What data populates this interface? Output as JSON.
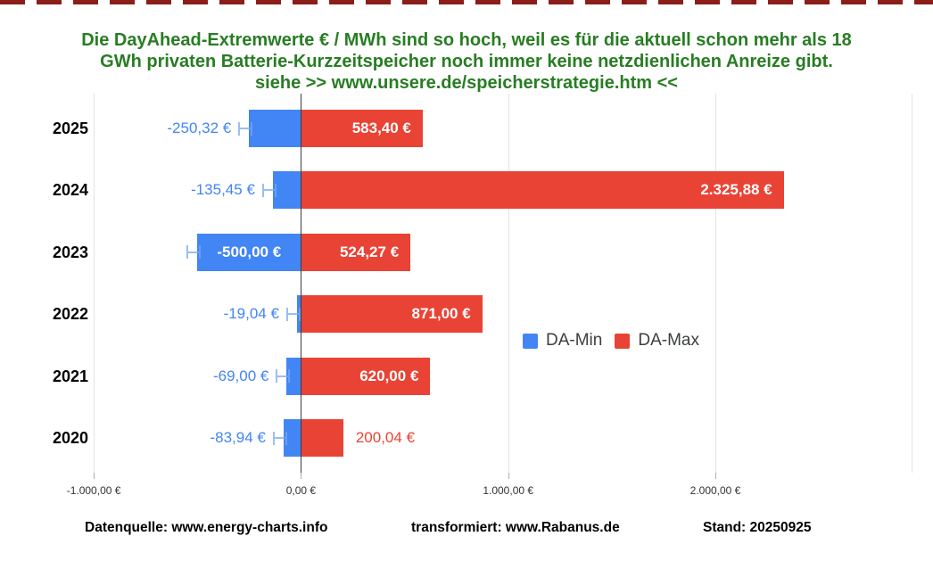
{
  "decor": {
    "top_border_color": "#8c1e19"
  },
  "title": {
    "color": "#287d23",
    "lines": [
      "Die DayAhead-Extremwerte € / MWh sind so hoch, weil es für die aktuell schon mehr als 18",
      "GWh privaten Batterie-Kurzzeitspeicher noch immer keine netzdienlichen Anreize gibt.",
      "siehe >> www.unsere.de/speicherstrategie.htm <<"
    ]
  },
  "chart_data": {
    "type": "bar",
    "orientation": "horizontal",
    "title": "DayAhead-Extremwerte € / MWh",
    "categories": [
      "2025",
      "2024",
      "2023",
      "2022",
      "2021",
      "2020"
    ],
    "series": [
      {
        "name": "DA-Min",
        "color": "#4285f4",
        "values": [
          -250.32,
          -135.45,
          -500.0,
          -19.04,
          -69.0,
          -83.94
        ],
        "labels": [
          "-250,32 €",
          "-135,45 €",
          "-500,00 €",
          "-19,04 €",
          "-69,00 €",
          "-83,94 €"
        ],
        "label_inside": [
          false,
          false,
          true,
          false,
          false,
          false
        ],
        "has_error_whisker": true
      },
      {
        "name": "DA-Max",
        "color": "#e94335",
        "values": [
          583.4,
          2325.88,
          524.27,
          871.0,
          620.0,
          200.04
        ],
        "labels": [
          "583,40 €",
          "2.325,88 €",
          "524,27 €",
          "871,00 €",
          "620,00 €",
          "200,04 €"
        ],
        "label_inside": [
          true,
          true,
          true,
          true,
          true,
          false
        ]
      }
    ],
    "x_axis": {
      "range": [
        -1194,
        2947
      ],
      "ticks": [
        {
          "value": -1000,
          "label": "-1.000,00 €"
        },
        {
          "value": 0,
          "label": "0,00 €"
        },
        {
          "value": 1000,
          "label": "1.000,00 €"
        },
        {
          "value": 2000,
          "label": "2.000,00 €"
        }
      ]
    },
    "grid": true,
    "legend": {
      "position": "middle-right"
    }
  },
  "footer": {
    "items": [
      "Datenquelle: www.energy-charts.info",
      "transformiert: www.Rabanus.de",
      "Stand: 20250925"
    ]
  }
}
